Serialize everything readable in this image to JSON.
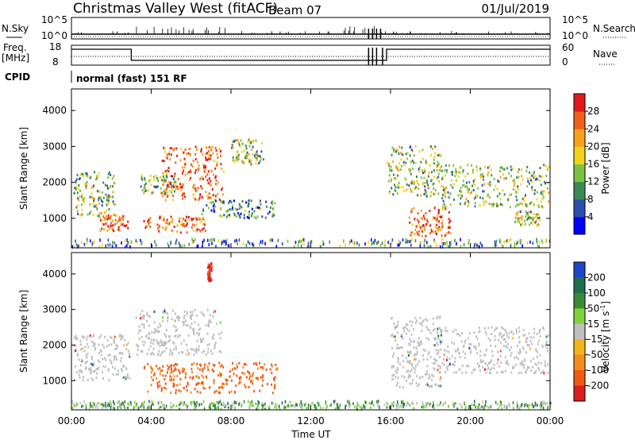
{
  "header": {
    "title": "Christmas Valley West (fitACF)",
    "beam": "Beam 07",
    "date": "01/Jul/2019"
  },
  "strip_panels": {
    "nsky_label": "N.Sky",
    "nsearch_label": "N.Search",
    "nsky_ticks": [
      "10^5",
      "10^0"
    ],
    "freq_label_line1": "Freq.",
    "freq_label_line2": "[MHz]",
    "freq_ticks": [
      "18",
      "8"
    ],
    "nave_label": "Nave",
    "nave_ticks": [
      "60",
      "0"
    ],
    "cpid_label": "CPID",
    "cpid_text": "normal (fast) 151 RF"
  },
  "colors": {
    "power_scale": [
      "#0000ff",
      "#2f4fb0",
      "#3a8a55",
      "#7cc242",
      "#f2d21b",
      "#f7a21c",
      "#f0611d",
      "#e01b1b"
    ],
    "velocity_scale": [
      "#1e46c8",
      "#1e6e50",
      "#3a8a3a",
      "#7fd23c",
      "#c0c0c0",
      "#f5b41e",
      "#f58c1e",
      "#f05a14",
      "#dc1e1e"
    ],
    "ground_scatter": "#c0c0c0"
  },
  "chart_data": [
    {
      "type": "heatmap",
      "title": "",
      "parameter": "Power",
      "ylabel": "Slant Range [km]",
      "ylim": [
        180,
        4600
      ],
      "yticks": [
        "1000",
        "2000",
        "3000",
        "4000"
      ],
      "xlim_hours": [
        0,
        24
      ],
      "xticks": [
        "00:00",
        "04:00",
        "08:00",
        "12:00",
        "16:00",
        "20:00",
        "00:00"
      ],
      "colorbar_label": "Power [dB]",
      "colorbar_ticks": [
        "4",
        "8",
        "12",
        "16",
        "20",
        "24",
        "28"
      ],
      "colorbar_range": [
        0,
        30
      ],
      "regions": [
        {
          "t": [
            0.1,
            2.2
          ],
          "r": [
            1050,
            2300
          ],
          "level": "medium"
        },
        {
          "t": [
            1.4,
            2.8
          ],
          "r": [
            650,
            1100
          ],
          "level": "high"
        },
        {
          "t": [
            3.4,
            5.2
          ],
          "r": [
            1700,
            2200
          ],
          "level": "medium"
        },
        {
          "t": [
            4.5,
            7.6
          ],
          "r": [
            1500,
            3000
          ],
          "level": "high"
        },
        {
          "t": [
            3.5,
            6.7
          ],
          "r": [
            600,
            1050
          ],
          "level": "high"
        },
        {
          "t": [
            6.5,
            10.2
          ],
          "r": [
            1000,
            1500
          ],
          "level": "medium-low"
        },
        {
          "t": [
            8.0,
            9.6
          ],
          "r": [
            2500,
            3200
          ],
          "level": "medium"
        },
        {
          "t": [
            15.8,
            18.5
          ],
          "r": [
            1600,
            3000
          ],
          "level": "medium"
        },
        {
          "t": [
            16.9,
            19.0
          ],
          "r": [
            500,
            1300
          ],
          "level": "high"
        },
        {
          "t": [
            18.5,
            23.9
          ],
          "r": [
            1300,
            2500
          ],
          "level": "medium"
        },
        {
          "t": [
            22.2,
            23.5
          ],
          "r": [
            800,
            1200
          ],
          "level": "medium"
        }
      ]
    },
    {
      "type": "heatmap",
      "title": "",
      "parameter": "Velocity",
      "ylabel": "Slant Range [km]",
      "ylim": [
        180,
        4600
      ],
      "yticks": [
        "1000",
        "2000",
        "3000",
        "4000"
      ],
      "xlim_hours": [
        0,
        24
      ],
      "xticks": [
        "00:00",
        "04:00",
        "08:00",
        "12:00",
        "16:00",
        "20:00",
        "00:00"
      ],
      "xlabel": "Time UT",
      "colorbar_label": "Velocity [m s-1]",
      "colorbar_ticks": [
        "200",
        "100",
        "50",
        "15",
        "-15",
        "-50",
        "-100",
        "-200"
      ],
      "colorbar_range": [
        -250,
        250
      ],
      "regions": [
        {
          "t": [
            0.1,
            2.9
          ],
          "r": [
            1000,
            2300
          ],
          "velocity": 0,
          "kind": "ground scatter"
        },
        {
          "t": [
            3.2,
            7.5
          ],
          "r": [
            1700,
            3000
          ],
          "velocity": 0,
          "kind": "ground scatter"
        },
        {
          "t": [
            3.6,
            10.3
          ],
          "r": [
            650,
            1500
          ],
          "velocity": -120
        },
        {
          "t": [
            6.8,
            7.0
          ],
          "r": [
            3800,
            4300
          ],
          "velocity": -220
        },
        {
          "t": [
            16.0,
            18.5
          ],
          "r": [
            800,
            2800
          ],
          "velocity": 0,
          "kind": "ground scatter"
        },
        {
          "t": [
            18.4,
            23.9
          ],
          "r": [
            1200,
            2500
          ],
          "velocity": 0,
          "kind": "ground scatter"
        },
        {
          "t": [
            0.0,
            24.0
          ],
          "r": [
            200,
            400
          ],
          "velocity": 30
        }
      ]
    }
  ]
}
